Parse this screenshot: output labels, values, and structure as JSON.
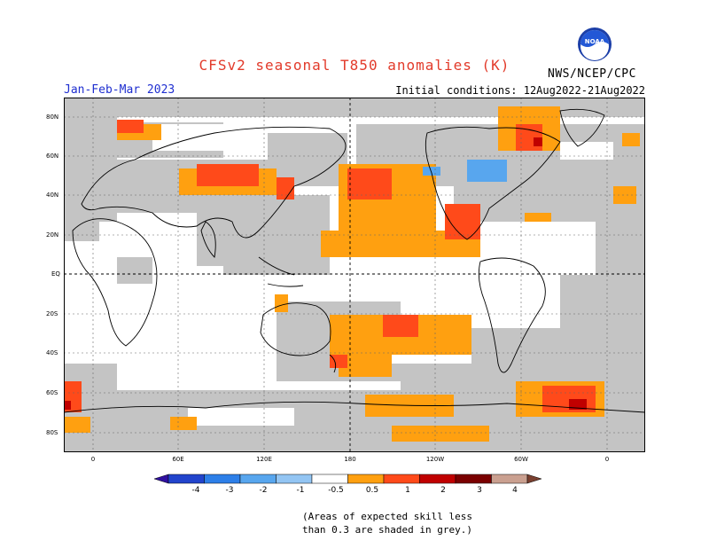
{
  "header": {
    "title": "CFSv2 seasonal T850 anomalies (K)",
    "period": "Jan-Feb-Mar 2023",
    "initial_conditions": "Initial conditions: 12Aug2022-21Aug2022",
    "agency": "NWS/NCEP/CPC",
    "logo_text": "NOAA"
  },
  "axes": {
    "lat_labels": [
      "80N",
      "60N",
      "40N",
      "20N",
      "EQ",
      "20S",
      "40S",
      "60S",
      "80S"
    ],
    "lon_labels": [
      "0",
      "60E",
      "120E",
      "180",
      "120W",
      "60W",
      "0"
    ]
  },
  "colorbar": {
    "labels": [
      "-4",
      "-3",
      "-2",
      "-1",
      "-0.5",
      "0.5",
      "1",
      "2",
      "3",
      "4"
    ],
    "colors": [
      "#3010a0",
      "#2244cc",
      "#2d7fe8",
      "#58a6ee",
      "#93c5f3",
      "#ffffff",
      "#ffa010",
      "#ff4a1a",
      "#c00000",
      "#7a0000",
      "#caa090",
      "#7a4030"
    ]
  },
  "note": {
    "line1": "(Areas of expected skill less",
    "line2": "than 0.3 are shaded in grey.)"
  },
  "colors": {
    "grey_mask": "#c4c4c4",
    "title_red": "#e23a2a",
    "period_blue": "#1f2fd0"
  }
}
